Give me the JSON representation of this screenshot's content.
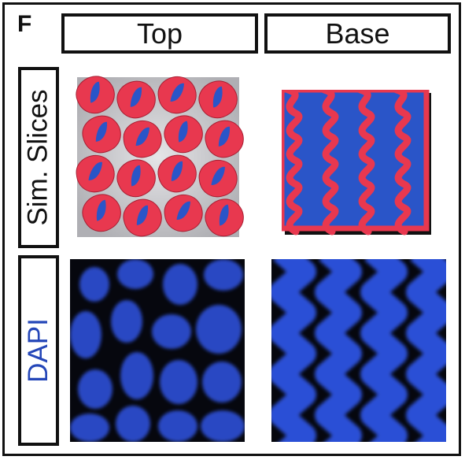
{
  "figure": {
    "panel_letter": "F",
    "columns": [
      {
        "label": "Top"
      },
      {
        "label": "Base"
      }
    ],
    "rows": [
      {
        "label": "Sim. Slices",
        "color": "#111111"
      },
      {
        "label": "DAPI",
        "color": "#2446b8"
      }
    ]
  },
  "colors": {
    "sim_red": "#e8384f",
    "sim_blue": "#2a55c8",
    "dapi_blue": "#2c4fd6",
    "dapi_bg": "#06070e",
    "frame": "#111111"
  },
  "tiles": {
    "top_left_icon": "simulated-slice-top-image",
    "top_right_icon": "simulated-slice-base-image",
    "bottom_left_icon": "dapi-top-image",
    "bottom_right_icon": "dapi-base-image"
  }
}
